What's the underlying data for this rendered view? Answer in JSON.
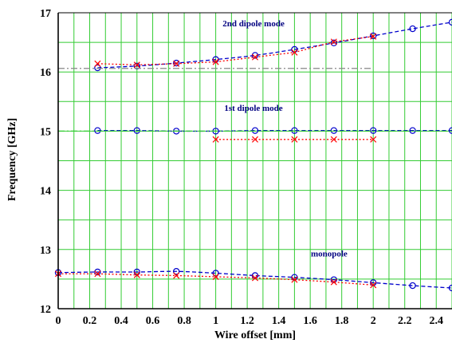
{
  "chart_data": {
    "type": "line",
    "title": "",
    "xlabel": "Wire offset [mm]",
    "ylabel": "Frequency [GHz]",
    "xlim": [
      0,
      2.5
    ],
    "ylim": [
      12,
      17
    ],
    "x_ticks": [
      "0",
      "0.2",
      "0.4",
      "0.6",
      "0.8",
      "1",
      "1.2",
      "1.4",
      "1.6",
      "1.8",
      "2",
      "2.2",
      "2.4"
    ],
    "y_ticks": [
      "12",
      "13",
      "14",
      "15",
      "16",
      "17"
    ],
    "grid": true,
    "grid_color": "#33cc33",
    "annotations": [
      {
        "text": "2nd dipole mode",
        "x": 1.24,
        "y": 16.77
      },
      {
        "text": "1st dipole mode",
        "x": 1.24,
        "y": 15.34
      },
      {
        "text": "monopole",
        "x": 1.72,
        "y": 12.88
      }
    ],
    "series": [
      {
        "color": "#0000cc",
        "marker": "circle",
        "line": "dashed",
        "x": [
          0,
          0.25,
          0.5,
          0.75,
          1.0,
          1.25,
          1.5,
          1.75,
          2.0,
          2.25,
          2.5
        ],
        "y": [
          12.61,
          12.62,
          12.62,
          12.63,
          12.6,
          12.56,
          12.53,
          12.49,
          12.44,
          12.39,
          12.35
        ]
      },
      {
        "color": "#ff0000",
        "marker": "x",
        "line": "dotted",
        "x": [
          0,
          0.25,
          0.5,
          0.75,
          1.0,
          1.25,
          1.5,
          1.75,
          2.0
        ],
        "y": [
          12.59,
          12.59,
          12.57,
          12.56,
          12.54,
          12.52,
          12.49,
          12.45,
          12.4
        ]
      },
      {
        "color": "#0000cc",
        "marker": "circle",
        "line": "dashed",
        "x": [
          0.25,
          0.5,
          0.75,
          1.0,
          1.25,
          1.5,
          1.75,
          2.0,
          2.25,
          2.5
        ],
        "y": [
          15.01,
          15.01,
          15.0,
          15.0,
          15.01,
          15.01,
          15.01,
          15.01,
          15.01,
          15.01
        ]
      },
      {
        "color": "#ff0000",
        "marker": "x",
        "line": "dotted",
        "x": [
          1.0,
          1.25,
          1.5,
          1.75,
          2.0
        ],
        "y": [
          14.86,
          14.86,
          14.86,
          14.86,
          14.86
        ]
      },
      {
        "color": "#0000cc",
        "marker": "circle",
        "line": "dashed",
        "x": [
          0.25,
          0.5,
          0.75,
          1.0,
          1.25,
          1.5,
          1.75,
          2.0,
          2.25,
          2.5
        ],
        "y": [
          16.07,
          16.1,
          16.15,
          16.21,
          16.28,
          16.38,
          16.49,
          16.61,
          16.73,
          16.84
        ]
      },
      {
        "color": "#ff0000",
        "marker": "x",
        "line": "dotted",
        "x": [
          0.25,
          0.5,
          0.75,
          1.0,
          1.25,
          1.5,
          1.75,
          2.0
        ],
        "y": [
          16.14,
          16.12,
          16.14,
          16.17,
          16.25,
          16.33,
          16.51,
          16.6
        ]
      },
      {
        "color": "#888888",
        "marker": "none",
        "line": "dashdot",
        "x": [
          0,
          2.0
        ],
        "y": [
          16.06,
          16.06
        ]
      },
      {
        "color": "#33cc33",
        "marker": "none",
        "line": "dashdot",
        "x": [
          0,
          2.5
        ],
        "y": [
          15.0,
          15.0
        ]
      }
    ]
  }
}
